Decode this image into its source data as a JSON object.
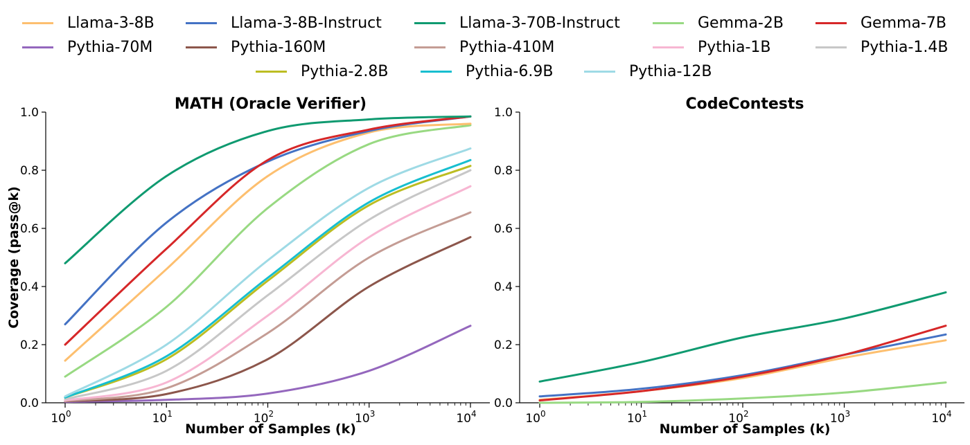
{
  "legend": [
    {
      "label": "Llama-3-8B",
      "color": "#fdbf6f"
    },
    {
      "label": "Llama-3-8B-Instruct",
      "color": "#4472c4"
    },
    {
      "label": "Llama-3-70B-Instruct",
      "color": "#0f9a70"
    },
    {
      "label": "Gemma-2B",
      "color": "#98d982"
    },
    {
      "label": "Gemma-7B",
      "color": "#d62728"
    },
    {
      "label": "Pythia-70M",
      "color": "#9467bd"
    },
    {
      "label": "Pythia-160M",
      "color": "#8c564b"
    },
    {
      "label": "Pythia-410M",
      "color": "#c49c94"
    },
    {
      "label": "Pythia-1B",
      "color": "#f7b6d2"
    },
    {
      "label": "Pythia-1.4B",
      "color": "#c7c7c7"
    },
    {
      "label": "Pythia-2.8B",
      "color": "#bcbd22"
    },
    {
      "label": "Pythia-6.9B",
      "color": "#17becf"
    },
    {
      "label": "Pythia-12B",
      "color": "#9edae5"
    }
  ],
  "chart_data": [
    {
      "type": "line",
      "title": "MATH (Oracle Verifier)",
      "xlabel": "Number of Samples (k)",
      "ylabel": "Coverage (pass@k)",
      "xscale": "log",
      "xlim": [
        1,
        10000
      ],
      "ylim": [
        0,
        1.0
      ],
      "x": [
        1,
        10,
        100,
        1000,
        10000
      ],
      "x_tick_labels": [
        "10^0",
        "10^1",
        "10^2",
        "10^3",
        "10^4"
      ],
      "y_ticks": [
        0.0,
        0.2,
        0.4,
        0.6,
        0.8,
        1.0
      ],
      "y_tick_labels": [
        "0.0",
        "0.2",
        "0.4",
        "0.6",
        "0.8",
        "1.0"
      ],
      "series": [
        {
          "name": "Pythia-70M",
          "color": "#9467bd",
          "values": [
            0.003,
            0.01,
            0.032,
            0.11,
            0.265
          ]
        },
        {
          "name": "Pythia-160M",
          "color": "#8c564b",
          "values": [
            0.005,
            0.03,
            0.15,
            0.4,
            0.57
          ]
        },
        {
          "name": "Pythia-410M",
          "color": "#c49c94",
          "values": [
            0.006,
            0.05,
            0.24,
            0.5,
            0.655
          ]
        },
        {
          "name": "Pythia-1B",
          "color": "#f7b6d2",
          "values": [
            0.008,
            0.07,
            0.3,
            0.57,
            0.745
          ]
        },
        {
          "name": "Pythia-1.4B",
          "color": "#c7c7c7",
          "values": [
            0.012,
            0.11,
            0.37,
            0.63,
            0.8
          ]
        },
        {
          "name": "Pythia-2.8B",
          "color": "#bcbd22",
          "values": [
            0.018,
            0.15,
            0.42,
            0.68,
            0.815
          ]
        },
        {
          "name": "Pythia-6.9B",
          "color": "#17becf",
          "values": [
            0.018,
            0.16,
            0.43,
            0.69,
            0.835
          ]
        },
        {
          "name": "Pythia-12B",
          "color": "#9edae5",
          "values": [
            0.022,
            0.2,
            0.49,
            0.74,
            0.875
          ]
        },
        {
          "name": "Gemma-2B",
          "color": "#98d982",
          "values": [
            0.09,
            0.33,
            0.67,
            0.89,
            0.955
          ]
        },
        {
          "name": "Llama-3-8B",
          "color": "#fdbf6f",
          "values": [
            0.145,
            0.46,
            0.78,
            0.93,
            0.96
          ]
        },
        {
          "name": "Llama-3-8B-Instruct",
          "color": "#4472c4",
          "values": [
            0.27,
            0.62,
            0.83,
            0.935,
            0.985
          ]
        },
        {
          "name": "Gemma-7B",
          "color": "#d62728",
          "values": [
            0.2,
            0.53,
            0.835,
            0.94,
            0.985
          ]
        },
        {
          "name": "Llama-3-70B-Instruct",
          "color": "#0f9a70",
          "values": [
            0.48,
            0.78,
            0.935,
            0.975,
            0.985
          ]
        }
      ]
    },
    {
      "type": "line",
      "title": "CodeContests",
      "xlabel": "Number of Samples (k)",
      "xscale": "log",
      "xlim": [
        1,
        10000
      ],
      "ylim": [
        0,
        1.0
      ],
      "x": [
        1,
        10,
        100,
        1000,
        10000
      ],
      "x_tick_labels": [
        "10^0",
        "10^1",
        "10^2",
        "10^3",
        "10^4"
      ],
      "y_ticks": [
        0.0,
        0.2,
        0.4,
        0.6,
        0.8,
        1.0
      ],
      "y_tick_labels": [
        "0.0",
        "0.2",
        "0.4",
        "0.6",
        "0.8",
        "1.0"
      ],
      "series": [
        {
          "name": "Gemma-2B",
          "color": "#98d982",
          "values": [
            0.0,
            0.003,
            0.015,
            0.035,
            0.07
          ]
        },
        {
          "name": "Llama-3-8B",
          "color": "#fdbf6f",
          "values": [
            0.01,
            0.04,
            0.085,
            0.155,
            0.215
          ]
        },
        {
          "name": "Llama-3-8B-Instruct",
          "color": "#4472c4",
          "values": [
            0.022,
            0.048,
            0.095,
            0.165,
            0.235
          ]
        },
        {
          "name": "Gemma-7B",
          "color": "#d62728",
          "values": [
            0.008,
            0.04,
            0.09,
            0.165,
            0.265
          ]
        },
        {
          "name": "Llama-3-70B-Instruct",
          "color": "#0f9a70",
          "values": [
            0.073,
            0.14,
            0.225,
            0.29,
            0.38
          ]
        }
      ]
    }
  ]
}
